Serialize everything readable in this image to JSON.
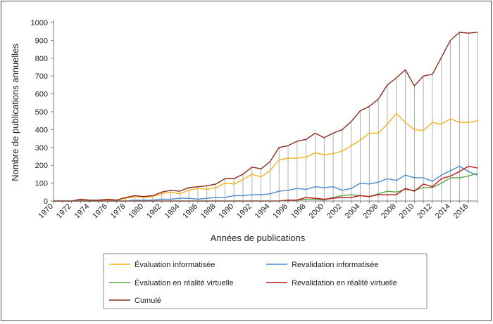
{
  "chart_data": {
    "type": "line",
    "xlabel": "Années de publications",
    "ylabel": "Nombre de publications annuelles",
    "ylim": [
      0,
      1000
    ],
    "yticks": [
      0,
      100,
      200,
      300,
      400,
      500,
      600,
      700,
      800,
      900,
      1000
    ],
    "x": [
      1970,
      1971,
      1972,
      1973,
      1974,
      1975,
      1976,
      1977,
      1978,
      1979,
      1980,
      1981,
      1982,
      1983,
      1984,
      1985,
      1986,
      1987,
      1988,
      1989,
      1990,
      1991,
      1992,
      1993,
      1994,
      1995,
      1996,
      1997,
      1998,
      1999,
      2000,
      2001,
      2002,
      2003,
      2004,
      2005,
      2006,
      2007,
      2008,
      2009,
      2010,
      2011,
      2012,
      2013,
      2014,
      2015,
      2016,
      2017
    ],
    "xtick_labels": [
      "1970",
      "1972",
      "1974",
      "1976",
      "1978",
      "1980",
      "1982",
      "1984",
      "1986",
      "1988",
      "1990",
      "1992",
      "1994",
      "1996",
      "1998",
      "2000",
      "2002",
      "2004",
      "2006",
      "2008",
      "2010",
      "2012",
      "2014",
      "2016"
    ],
    "drop_lines_series": "Cumulé",
    "grid": false,
    "legend_position": "bottom",
    "series": [
      {
        "name": "Évaluation informatisée",
        "color": "#f5b21a",
        "values": [
          0,
          0,
          0,
          5,
          3,
          5,
          5,
          5,
          15,
          25,
          20,
          25,
          40,
          50,
          40,
          60,
          70,
          65,
          75,
          100,
          95,
          120,
          150,
          135,
          170,
          230,
          240,
          240,
          245,
          270,
          260,
          265,
          280,
          310,
          340,
          380,
          380,
          430,
          490,
          440,
          400,
          395,
          440,
          430,
          460,
          440,
          440,
          450
        ]
      },
      {
        "name": "Revalidation informatisée",
        "color": "#4c8bc6",
        "values": [
          0,
          0,
          0,
          0,
          0,
          0,
          0,
          0,
          0,
          5,
          5,
          5,
          10,
          10,
          15,
          15,
          10,
          15,
          20,
          20,
          30,
          30,
          35,
          35,
          40,
          55,
          60,
          70,
          65,
          80,
          75,
          80,
          60,
          70,
          100,
          95,
          105,
          125,
          115,
          145,
          130,
          130,
          110,
          145,
          170,
          195,
          165,
          145
        ]
      },
      {
        "name": "Évaluation en réalité virtuelle",
        "color": "#5aa646",
        "values": [
          0,
          0,
          0,
          0,
          0,
          0,
          0,
          0,
          0,
          0,
          0,
          0,
          0,
          0,
          0,
          0,
          0,
          0,
          0,
          0,
          0,
          0,
          0,
          0,
          0,
          0,
          5,
          5,
          10,
          10,
          5,
          20,
          30,
          35,
          30,
          25,
          40,
          55,
          50,
          65,
          60,
          75,
          75,
          100,
          130,
          130,
          140,
          155
        ]
      },
      {
        "name": "Revalidation en réalité virtuelle",
        "color": "#c0161c",
        "values": [
          0,
          0,
          0,
          0,
          0,
          0,
          0,
          0,
          0,
          0,
          0,
          0,
          0,
          0,
          0,
          0,
          0,
          0,
          0,
          0,
          0,
          0,
          0,
          0,
          0,
          0,
          5,
          5,
          20,
          15,
          10,
          15,
          20,
          20,
          30,
          25,
          35,
          35,
          35,
          70,
          55,
          95,
          80,
          125,
          140,
          165,
          195,
          185
        ]
      },
      {
        "name": "Cumulé",
        "color": "#8b2a1f",
        "values": [
          0,
          0,
          0,
          10,
          5,
          5,
          10,
          5,
          20,
          30,
          25,
          30,
          50,
          60,
          55,
          75,
          80,
          85,
          95,
          125,
          125,
          150,
          190,
          180,
          220,
          300,
          310,
          335,
          345,
          380,
          355,
          380,
          400,
          445,
          505,
          530,
          570,
          650,
          690,
          735,
          645,
          700,
          710,
          805,
          900,
          945,
          940,
          945
        ]
      }
    ]
  }
}
